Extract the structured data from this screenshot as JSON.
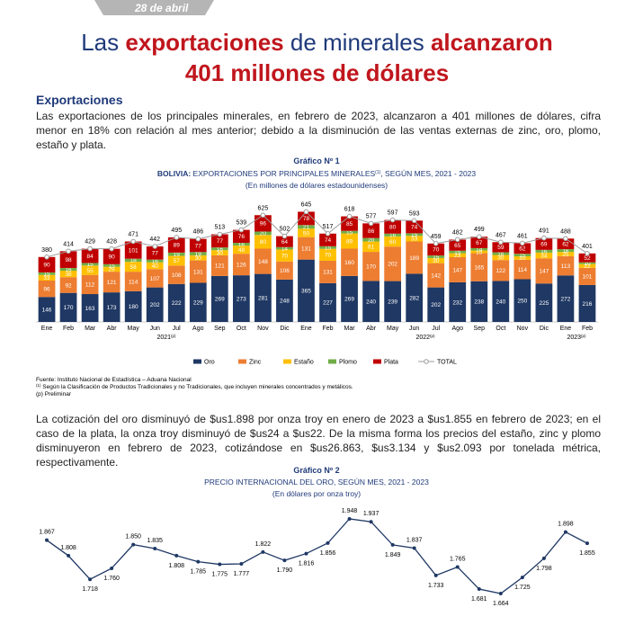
{
  "date": "28 de abril",
  "title": [
    "Las ",
    "exportaciones",
    " de minerales ",
    "alcanzaron",
    "401 millones de dólares"
  ],
  "section": "Exportaciones",
  "paragraph1": "Las exportaciones de los principales minerales, en febrero de 2023, alcanzaron a 401 millones de dólares, cifra menor en 18% con relación al mes anterior; debido a la disminución de las ventas externas de zinc, oro, plomo, estaño y plata.",
  "paragraph2": "La cotización del oro disminuyó de $us1.898 por onza troy en enero de 2023 a $us1.855 en febrero de 2023; en el caso de la plata, la onza troy disminuyó de $us24 a $us22. De la misma forma los precios del estaño, zinc y plomo disminuyeron en febrero de 2023, cotizándose en $us26.863, $us3.134 y $us2.093 por tonelada métrica, respectivamente.",
  "chart_data": [
    {
      "type": "stacked-bar",
      "label": "Gráfico Nº 1",
      "title": [
        "BOLIVIA:",
        " EXPORTACIONES POR PRINCIPALES MINERALES",
        "(1)",
        ", SEGÚN MES, 2021 - 2023"
      ],
      "subtitle": "(En millones de dólares estadounidenses)",
      "categories": [
        "Ene",
        "Feb",
        "Mar",
        "Abr",
        "May",
        "Jun",
        "Jul",
        "Ago",
        "Sep",
        "Oct",
        "Nov",
        "Dic",
        "Ene",
        "Feb",
        "Mar",
        "Abr",
        "May",
        "Jun",
        "Jul",
        "Ago",
        "Sep",
        "Oct",
        "Nov",
        "Dic",
        "Ene",
        "Feb"
      ],
      "years": [
        {
          "label": "2021",
          "note": "(p)"
        },
        {
          "label": "2022",
          "note": "(p)"
        },
        {
          "label": "2023",
          "note": "(p)"
        }
      ],
      "series": [
        {
          "name": "Oro",
          "color": "#1f3864",
          "values": [
            146,
            170,
            163,
            173,
            180,
            202,
            222,
            229,
            269,
            273,
            281,
            248,
            365,
            227,
            269,
            240,
            239,
            282,
            202,
            232,
            238,
            240,
            250,
            225,
            272,
            216
          ]
        },
        {
          "name": "Zinc",
          "color": "#ed7d31",
          "values": [
            96,
            92,
            112,
            121,
            114,
            107,
            108,
            131,
            121,
            126,
            148,
            106,
            131,
            131,
            160,
            170,
            202,
            189,
            142,
            147,
            165,
            122,
            114,
            147,
            113,
            101
          ]
        },
        {
          "name": "Estaño",
          "color": "#ffc000",
          "values": [
            33,
            38,
            55,
            29,
            58,
            40,
            57,
            30,
            30,
            48,
            80,
            70,
            50,
            70,
            89,
            61,
            60,
            33,
            30,
            23,
            15,
            30,
            20,
            34,
            25,
            22
          ]
        },
        {
          "name": "Plomo",
          "color": "#70ad47",
          "values": [
            15,
            16,
            15,
            15,
            18,
            16,
            19,
            19,
            16,
            16,
            20,
            14,
            21,
            15,
            15,
            20,
            16,
            15,
            15,
            15,
            14,
            16,
            15,
            16,
            16,
            10
          ]
        },
        {
          "name": "Plata",
          "color": "#c00000",
          "values": [
            90,
            98,
            84,
            90,
            101,
            77,
            89,
            77,
            77,
            76,
            96,
            64,
            78,
            74,
            85,
            86,
            80,
            74,
            70,
            65,
            67,
            59,
            62,
            69,
            62,
            52
          ]
        },
        {
          "name": "TOTAL",
          "color": "#9e9e9e",
          "type": "line",
          "values": [
            380,
            414,
            429,
            428,
            471,
            442,
            495,
            486,
            513,
            539,
            625,
            502,
            645,
            517,
            618,
            577,
            597,
            593,
            459,
            482,
            499,
            467,
            461,
            491,
            488,
            401
          ]
        }
      ],
      "notes": {
        "source": "Fuente: Instituto Nacional de Estadística – Aduana Nacional",
        "note1_mark": "(1)",
        "note1": " Según la Clasificación de Productos Tradicionales y no Tradicionales, que incluyen minerales concentrados y metálicos.",
        "note2": "(p) Preliminar"
      }
    },
    {
      "type": "line",
      "label": "Gráfico Nº 2",
      "title": "PRECIO INTERNACIONAL DEL ORO, SEGÚN MES, 2021 - 2023",
      "subtitle": "(En dólares por onza troy)",
      "color": "#1f3864",
      "values": [
        1867,
        1808,
        1718,
        1760,
        1850,
        1835,
        1808,
        1785,
        1775,
        1777,
        1822,
        1790,
        1816,
        1856,
        1948,
        1937,
        1849,
        1837,
        1733,
        1765,
        1681,
        1664,
        1725,
        1798,
        1898,
        1855
      ],
      "value_labels": [
        "1.867",
        "1.808",
        "1.718",
        "1.760",
        "1.850",
        "1.835",
        "1.808",
        "1.785",
        "1.775",
        "1.777",
        "1.822",
        "1.790",
        "1.816",
        "1.856",
        "1.948",
        "1.937",
        "1.849",
        "1.837",
        "1.733",
        "1.765",
        "1.681",
        "1.664",
        "1.725",
        "1.798",
        "1.898",
        "1.855"
      ]
    }
  ]
}
